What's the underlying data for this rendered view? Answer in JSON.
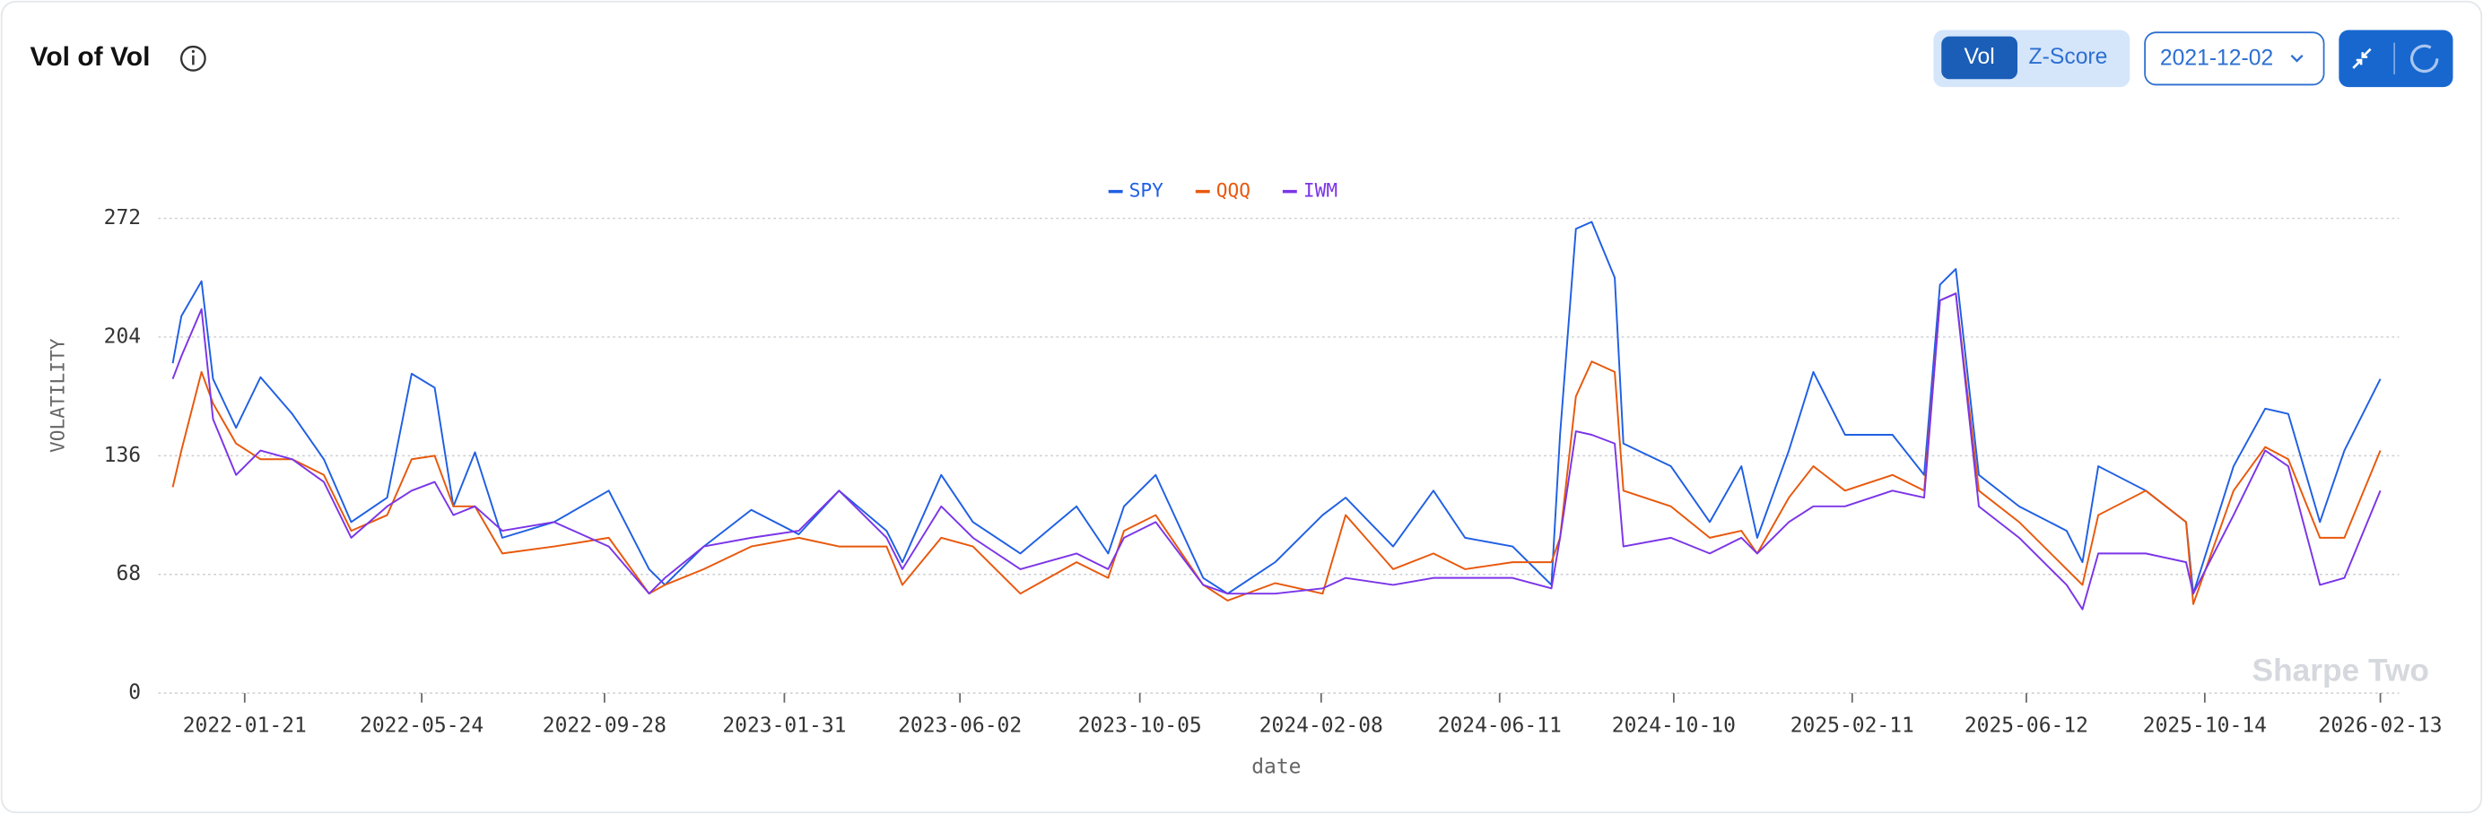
{
  "header": {
    "title": "Vol of Vol",
    "toggle": [
      "Vol",
      "Z-Score"
    ],
    "date": "2021-12-02"
  },
  "watermark": "Sharpe Two",
  "chart_data": {
    "type": "line",
    "ylabel": "VOLATILITY",
    "xlabel": "date",
    "x": [
      "2021-12-02",
      "2021-12-08",
      "2021-12-22",
      "2021-12-30",
      "2022-01-15",
      "2022-02-01",
      "2022-02-23",
      "2022-03-17",
      "2022-04-05",
      "2022-04-30",
      "2022-05-17",
      "2022-06-02",
      "2022-06-15",
      "2022-06-30",
      "2022-07-19",
      "2022-08-24",
      "2022-10-01",
      "2022-10-29",
      "2022-11-09",
      "2022-12-06",
      "2023-01-08",
      "2023-02-10",
      "2023-03-10",
      "2023-04-12",
      "2023-04-23",
      "2023-05-20",
      "2023-06-11",
      "2023-07-14",
      "2023-08-22",
      "2023-09-13",
      "2023-09-24",
      "2023-10-16",
      "2023-11-18",
      "2023-12-05",
      "2024-01-07",
      "2024-02-09",
      "2024-02-25",
      "2024-03-29",
      "2024-04-26",
      "2024-05-18",
      "2024-06-20",
      "2024-07-17",
      "2024-07-23",
      "2024-08-03",
      "2024-08-14",
      "2024-08-30",
      "2024-09-05",
      "2024-10-08",
      "2024-11-04",
      "2024-11-26",
      "2024-12-07",
      "2024-12-29",
      "2025-01-15",
      "2025-02-06",
      "2025-03-11",
      "2025-04-02",
      "2025-04-13",
      "2025-04-24",
      "2025-05-10",
      "2025-06-07",
      "2025-07-10",
      "2025-07-21",
      "2025-08-01",
      "2025-09-03",
      "2025-10-01",
      "2025-10-06",
      "2025-11-03",
      "2025-11-25",
      "2025-12-11",
      "2026-01-02",
      "2026-01-19",
      "2026-02-13"
    ],
    "series": [
      {
        "name": "SPY",
        "color": "#1f5fe3",
        "values": [
          189,
          216,
          236,
          180,
          152,
          181,
          160,
          134,
          98,
          112,
          183,
          175,
          107,
          138,
          89,
          98,
          116,
          71,
          62,
          84,
          105,
          91,
          116,
          93,
          75,
          125,
          98,
          80,
          107,
          80,
          107,
          125,
          66,
          57,
          75,
          102,
          112,
          84,
          116,
          89,
          84,
          62,
          148,
          266,
          270,
          238,
          143,
          130,
          98,
          130,
          89,
          139,
          184,
          148,
          148,
          125,
          234,
          243,
          125,
          107,
          93,
          75,
          130,
          116,
          98,
          57,
          130,
          163,
          160,
          98,
          139,
          180
        ]
      },
      {
        "name": "QQQ",
        "color": "#e8580c",
        "values": [
          118,
          139,
          184,
          166,
          143,
          134,
          134,
          125,
          93,
          102,
          134,
          136,
          107,
          107,
          80,
          84,
          89,
          57,
          62,
          71,
          84,
          89,
          84,
          84,
          62,
          89,
          84,
          57,
          75,
          66,
          93,
          102,
          62,
          53,
          63,
          57,
          102,
          71,
          80,
          71,
          75,
          75,
          89,
          170,
          190,
          184,
          116,
          107,
          89,
          93,
          80,
          112,
          130,
          116,
          125,
          116,
          225,
          229,
          116,
          98,
          71,
          62,
          102,
          116,
          98,
          51,
          116,
          141,
          134,
          89,
          89,
          139
        ]
      },
      {
        "name": "IWM",
        "color": "#7b35e8",
        "values": [
          180,
          193,
          220,
          157,
          125,
          139,
          134,
          121,
          89,
          107,
          116,
          121,
          102,
          107,
          93,
          98,
          84,
          57,
          66,
          84,
          89,
          93,
          116,
          89,
          71,
          107,
          89,
          71,
          80,
          71,
          89,
          98,
          62,
          57,
          57,
          60,
          66,
          62,
          66,
          66,
          66,
          60,
          89,
          150,
          148,
          143,
          84,
          89,
          80,
          89,
          80,
          98,
          107,
          107,
          116,
          112,
          225,
          229,
          107,
          89,
          62,
          48,
          80,
          80,
          75,
          57,
          102,
          139,
          130,
          62,
          66,
          116
        ]
      }
    ],
    "xlim": [
      "2021-11-22",
      "2026-02-26"
    ],
    "xticks": [
      "2022-01-21",
      "2022-05-24",
      "2022-09-28",
      "2023-01-31",
      "2023-06-02",
      "2023-10-05",
      "2024-02-08",
      "2024-06-11",
      "2024-10-10",
      "2025-02-11",
      "2025-06-12",
      "2025-10-14",
      "2026-02-13"
    ],
    "ylim": [
      0,
      272
    ],
    "yticks": [
      0,
      68,
      136,
      204,
      272
    ],
    "grid": true,
    "legend": "top"
  }
}
